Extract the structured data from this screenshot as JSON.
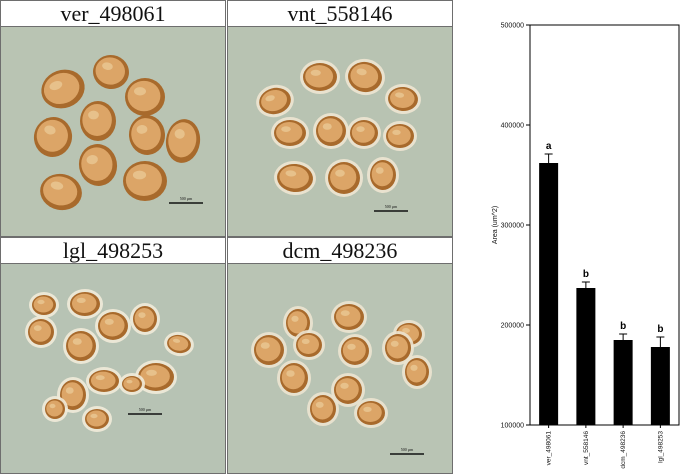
{
  "panels": [
    {
      "label": "ver_498061",
      "scale_bar_label": "500 µm"
    },
    {
      "label": "vnt_558146",
      "scale_bar_label": "500 µm"
    },
    {
      "label": "lgl_498253",
      "scale_bar_label": "500 µm"
    },
    {
      "label": "dcm_498236",
      "scale_bar_label": "500 µm"
    }
  ],
  "colors": {
    "photo_background": "#b7c2b1",
    "seed_coat_dark": "#a86a2c",
    "seed_coat_light": "#dca567",
    "seed_rim": "#f2ead6",
    "bar_fill": "#000000"
  },
  "chart_data": {
    "type": "bar",
    "categories": [
      "ver_498061",
      "vnt_558146",
      "dcm_498236",
      "lgl_498253"
    ],
    "values": [
      362000,
      237000,
      185000,
      178000
    ],
    "errors": [
      9000,
      6000,
      6000,
      10000
    ],
    "significance_letters": [
      "a",
      "b",
      "b",
      "b"
    ],
    "ylabel": "Area (um^2)",
    "xlabel": "",
    "title": "",
    "ylim": [
      100000,
      500000
    ],
    "yticks": [
      100000,
      200000,
      300000,
      400000,
      500000
    ],
    "ytick_labels": [
      "100000",
      "200000",
      "300000",
      "400000",
      "500000"
    ],
    "grid": false
  }
}
